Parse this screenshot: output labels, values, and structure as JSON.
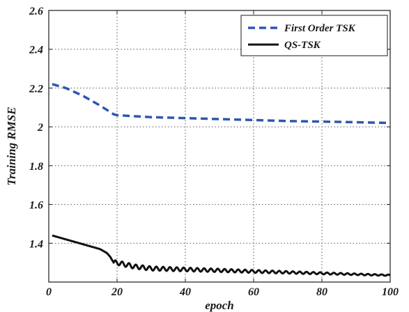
{
  "chart_data": {
    "type": "line",
    "xlabel": "epoch",
    "ylabel": "Training RMSE",
    "xlim": [
      0,
      100
    ],
    "ylim": [
      1.2,
      2.6
    ],
    "x_ticks": [
      0,
      20,
      40,
      60,
      80,
      100
    ],
    "x_tick_labels": [
      "0",
      "20",
      "40",
      "60",
      "80",
      "100"
    ],
    "y_ticks": [
      1.4,
      1.6,
      1.8,
      2.0,
      2.2,
      2.4,
      2.6
    ],
    "y_tick_labels": [
      "1.4",
      "1.6",
      "1.8",
      "2",
      "2.2",
      "2.4",
      "2.6"
    ],
    "grid": "dotted",
    "legend_position": "top-right",
    "series": [
      {
        "name": "First Order TSK",
        "style": "dashed",
        "color": "#2f56b0",
        "x": [
          1,
          5,
          10,
          15,
          19,
          20,
          25,
          30,
          40,
          50,
          60,
          70,
          80,
          90,
          100
        ],
        "y": [
          2.22,
          2.2,
          2.16,
          2.11,
          2.065,
          2.06,
          2.055,
          2.05,
          2.045,
          2.04,
          2.035,
          2.03,
          2.027,
          2.024,
          2.02
        ]
      },
      {
        "name": "QS-TSK",
        "style": "solid",
        "color": "#111111",
        "x": [
          1,
          5,
          10,
          15,
          17,
          18,
          19,
          20,
          25,
          30,
          40,
          50,
          60,
          70,
          80,
          90,
          100
        ],
        "y": [
          1.44,
          1.42,
          1.395,
          1.37,
          1.35,
          1.33,
          1.3,
          1.3,
          1.28,
          1.27,
          1.265,
          1.26,
          1.255,
          1.25,
          1.245,
          1.24,
          1.235
        ],
        "oscillation": {
          "from_x": 19,
          "to_x": 100,
          "period": 2,
          "amplitude_start": 0.012,
          "amplitude_end": 0.003
        }
      }
    ]
  }
}
